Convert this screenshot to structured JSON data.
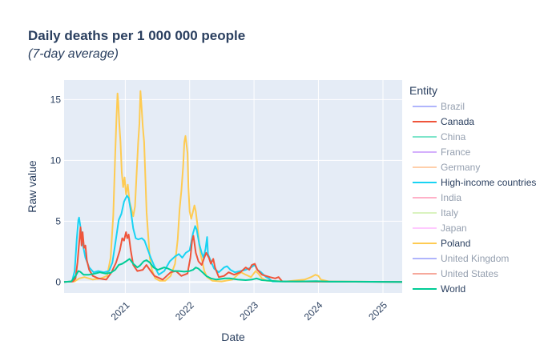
{
  "chart_data": {
    "type": "line",
    "title": "Daily deaths per 1 000 000 people",
    "subtitle": "(7-day average)",
    "xlabel": "Date",
    "ylabel": "Raw value",
    "xlim": [
      "2020-01-20",
      "2025-04-20"
    ],
    "ylim": [
      -0.9,
      16.6
    ],
    "x_ticks": [
      "2021",
      "2022",
      "2023",
      "2024",
      "2025"
    ],
    "y_ticks": [
      0,
      5,
      10,
      15
    ],
    "grid": true,
    "legend_title": "Entity",
    "legend_position": "right",
    "series": [
      {
        "name": "Brazil",
        "color": "#636efa",
        "visible": false,
        "points": []
      },
      {
        "name": "Canada",
        "color": "#EF553B",
        "visible": true,
        "points": [
          [
            "2020-01-20",
            0
          ],
          [
            "2020-03-10",
            0.05
          ],
          [
            "2020-03-25",
            0.3
          ],
          [
            "2020-04-05",
            1.6
          ],
          [
            "2020-04-15",
            3.3
          ],
          [
            "2020-04-22",
            4.5
          ],
          [
            "2020-04-28",
            3.0
          ],
          [
            "2020-05-04",
            4.1
          ],
          [
            "2020-05-12",
            2.8
          ],
          [
            "2020-05-20",
            3.0
          ],
          [
            "2020-05-28",
            1.8
          ],
          [
            "2020-06-10",
            1.0
          ],
          [
            "2020-07-01",
            0.5
          ],
          [
            "2020-08-01",
            0.3
          ],
          [
            "2020-09-15",
            0.2
          ],
          [
            "2020-10-15",
            0.8
          ],
          [
            "2020-11-10",
            1.6
          ],
          [
            "2020-12-01",
            2.6
          ],
          [
            "2020-12-15",
            3.6
          ],
          [
            "2020-12-25",
            3.4
          ],
          [
            "2021-01-05",
            4.1
          ],
          [
            "2021-01-12",
            3.6
          ],
          [
            "2021-01-20",
            3.9
          ],
          [
            "2021-02-01",
            2.6
          ],
          [
            "2021-02-15",
            1.4
          ],
          [
            "2021-03-10",
            0.9
          ],
          [
            "2021-04-10",
            1.0
          ],
          [
            "2021-05-01",
            1.4
          ],
          [
            "2021-05-20",
            1.0
          ],
          [
            "2021-06-15",
            0.5
          ],
          [
            "2021-08-01",
            0.2
          ],
          [
            "2021-09-15",
            0.8
          ],
          [
            "2021-10-15",
            0.9
          ],
          [
            "2021-11-15",
            0.5
          ],
          [
            "2021-12-20",
            0.7
          ],
          [
            "2022-01-05",
            2.0
          ],
          [
            "2022-01-15",
            3.4
          ],
          [
            "2022-01-22",
            3.8
          ],
          [
            "2022-01-28",
            3.2
          ],
          [
            "2022-02-05",
            2.4
          ],
          [
            "2022-02-20",
            1.7
          ],
          [
            "2022-03-10",
            1.4
          ],
          [
            "2022-03-25",
            2.0
          ],
          [
            "2022-04-05",
            2.4
          ],
          [
            "2022-04-20",
            2.0
          ],
          [
            "2022-05-01",
            1.5
          ],
          [
            "2022-05-15",
            1.9
          ],
          [
            "2022-05-25",
            1.2
          ],
          [
            "2022-06-15",
            0.4
          ],
          [
            "2022-07-15",
            0.5
          ],
          [
            "2022-08-10",
            0.8
          ],
          [
            "2022-09-10",
            0.6
          ],
          [
            "2022-10-15",
            0.8
          ],
          [
            "2022-11-15",
            1.2
          ],
          [
            "2022-12-05",
            1.0
          ],
          [
            "2022-12-20",
            1.4
          ],
          [
            "2023-01-05",
            1.5
          ],
          [
            "2023-01-20",
            1.0
          ],
          [
            "2023-02-15",
            0.6
          ],
          [
            "2023-04-01",
            0.4
          ],
          [
            "2023-05-01",
            0.3
          ],
          [
            "2023-05-20",
            0.4
          ],
          [
            "2023-06-10",
            0.05
          ],
          [
            "2025-04-20",
            0
          ]
        ]
      },
      {
        "name": "China",
        "color": "#00cc96",
        "visible": false,
        "points": []
      },
      {
        "name": "France",
        "color": "#ab63fa",
        "visible": false,
        "points": []
      },
      {
        "name": "Germany",
        "color": "#FFA15A",
        "visible": false,
        "points": []
      },
      {
        "name": "High-income countries",
        "color": "#19d3f3",
        "visible": true,
        "points": [
          [
            "2020-01-20",
            0
          ],
          [
            "2020-03-05",
            0.05
          ],
          [
            "2020-03-20",
            0.9
          ],
          [
            "2020-04-01",
            3.5
          ],
          [
            "2020-04-10",
            5.1
          ],
          [
            "2020-04-14",
            5.3
          ],
          [
            "2020-04-22",
            4.5
          ],
          [
            "2020-05-05",
            3.1
          ],
          [
            "2020-05-20",
            2.0
          ],
          [
            "2020-06-10",
            1.2
          ],
          [
            "2020-07-05",
            0.8
          ],
          [
            "2020-08-01",
            0.9
          ],
          [
            "2020-09-01",
            0.8
          ],
          [
            "2020-10-01",
            0.9
          ],
          [
            "2020-10-20",
            1.6
          ],
          [
            "2020-11-10",
            3.6
          ],
          [
            "2020-11-25",
            5.1
          ],
          [
            "2020-12-10",
            5.6
          ],
          [
            "2020-12-25",
            6.6
          ],
          [
            "2021-01-10",
            7.1
          ],
          [
            "2021-01-20",
            6.9
          ],
          [
            "2021-02-01",
            5.9
          ],
          [
            "2021-02-15",
            4.4
          ],
          [
            "2021-03-01",
            3.6
          ],
          [
            "2021-03-15",
            3.5
          ],
          [
            "2021-04-05",
            3.6
          ],
          [
            "2021-04-20",
            3.4
          ],
          [
            "2021-05-05",
            2.8
          ],
          [
            "2021-05-25",
            2.0
          ],
          [
            "2021-06-15",
            1.3
          ],
          [
            "2021-07-10",
            0.6
          ],
          [
            "2021-08-10",
            0.9
          ],
          [
            "2021-09-10",
            1.7
          ],
          [
            "2021-10-10",
            2.1
          ],
          [
            "2021-11-01",
            2.3
          ],
          [
            "2021-11-20",
            2.0
          ],
          [
            "2021-12-10",
            2.4
          ],
          [
            "2022-01-01",
            2.6
          ],
          [
            "2022-01-20",
            4.0
          ],
          [
            "2022-02-01",
            4.6
          ],
          [
            "2022-02-10",
            4.3
          ],
          [
            "2022-02-25",
            3.1
          ],
          [
            "2022-03-10",
            2.4
          ],
          [
            "2022-03-20",
            2.0
          ],
          [
            "2022-04-01",
            2.7
          ],
          [
            "2022-04-10",
            3.7
          ],
          [
            "2022-04-15",
            2.3
          ],
          [
            "2022-05-01",
            1.7
          ],
          [
            "2022-05-20",
            1.1
          ],
          [
            "2022-06-15",
            0.8
          ],
          [
            "2022-07-15",
            1.2
          ],
          [
            "2022-08-01",
            1.3
          ],
          [
            "2022-08-20",
            1.0
          ],
          [
            "2022-09-15",
            0.8
          ],
          [
            "2022-10-15",
            0.9
          ],
          [
            "2022-11-15",
            1.0
          ],
          [
            "2022-12-15",
            1.2
          ],
          [
            "2023-01-05",
            1.4
          ],
          [
            "2023-01-20",
            1.0
          ],
          [
            "2023-02-10",
            0.8
          ],
          [
            "2023-03-10",
            0.4
          ],
          [
            "2023-03-25",
            0.3
          ],
          [
            "2023-04-15",
            0.05
          ],
          [
            "2025-04-20",
            0
          ]
        ]
      },
      {
        "name": "India",
        "color": "#FF6692",
        "visible": false,
        "points": []
      },
      {
        "name": "Italy",
        "color": "#B6E880",
        "visible": false,
        "points": []
      },
      {
        "name": "Japan",
        "color": "#FF97FF",
        "visible": false,
        "points": []
      },
      {
        "name": "Poland",
        "color": "#FECB52",
        "visible": true,
        "points": [
          [
            "2020-01-20",
            0
          ],
          [
            "2020-03-20",
            0.05
          ],
          [
            "2020-04-15",
            0.3
          ],
          [
            "2020-05-15",
            0.4
          ],
          [
            "2020-07-01",
            0.2
          ],
          [
            "2020-08-15",
            0.3
          ],
          [
            "2020-09-20",
            0.5
          ],
          [
            "2020-10-10",
            2.0
          ],
          [
            "2020-10-25",
            5.5
          ],
          [
            "2020-11-05",
            10.5
          ],
          [
            "2020-11-12",
            13.5
          ],
          [
            "2020-11-18",
            15.5
          ],
          [
            "2020-11-22",
            14.8
          ],
          [
            "2020-11-28",
            13.0
          ],
          [
            "2020-12-05",
            11.5
          ],
          [
            "2020-12-12",
            9.0
          ],
          [
            "2020-12-20",
            7.8
          ],
          [
            "2020-12-28",
            8.6
          ],
          [
            "2021-01-05",
            7.2
          ],
          [
            "2021-01-15",
            8.0
          ],
          [
            "2021-01-25",
            6.6
          ],
          [
            "2021-02-05",
            6.0
          ],
          [
            "2021-02-15",
            5.4
          ],
          [
            "2021-02-25",
            6.2
          ],
          [
            "2021-03-05",
            8.6
          ],
          [
            "2021-03-15",
            11.5
          ],
          [
            "2021-03-22",
            13.0
          ],
          [
            "2021-03-28",
            15.7
          ],
          [
            "2021-04-03",
            14.5
          ],
          [
            "2021-04-10",
            12.8
          ],
          [
            "2021-04-18",
            11.5
          ],
          [
            "2021-04-25",
            8.5
          ],
          [
            "2021-05-02",
            5.7
          ],
          [
            "2021-05-10",
            4.0
          ],
          [
            "2021-05-20",
            2.0
          ],
          [
            "2021-06-01",
            1.0
          ],
          [
            "2021-06-20",
            0.3
          ],
          [
            "2021-07-15",
            0.1
          ],
          [
            "2021-08-15",
            0.1
          ],
          [
            "2021-09-15",
            0.5
          ],
          [
            "2021-10-10",
            1.5
          ],
          [
            "2021-10-25",
            3.5
          ],
          [
            "2021-11-05",
            6.0
          ],
          [
            "2021-11-15",
            7.5
          ],
          [
            "2021-11-25",
            9.5
          ],
          [
            "2021-12-02",
            11.5
          ],
          [
            "2021-12-08",
            12.0
          ],
          [
            "2021-12-15",
            11.2
          ],
          [
            "2021-12-20",
            10.6
          ],
          [
            "2021-12-25",
            7.8
          ],
          [
            "2022-01-01",
            5.8
          ],
          [
            "2022-01-10",
            5.2
          ],
          [
            "2022-01-20",
            5.8
          ],
          [
            "2022-01-28",
            6.3
          ],
          [
            "2022-02-05",
            5.8
          ],
          [
            "2022-02-15",
            4.6
          ],
          [
            "2022-02-25",
            3.0
          ],
          [
            "2022-03-05",
            2.2
          ],
          [
            "2022-03-15",
            1.6
          ],
          [
            "2022-03-25",
            0.9
          ],
          [
            "2022-04-10",
            0.4
          ],
          [
            "2022-05-10",
            0.1
          ],
          [
            "2022-07-01",
            0.05
          ],
          [
            "2022-09-01",
            0.2
          ],
          [
            "2022-10-01",
            0.6
          ],
          [
            "2022-10-20",
            0.8
          ],
          [
            "2022-11-15",
            0.6
          ],
          [
            "2022-12-15",
            0.4
          ],
          [
            "2023-01-10",
            0.9
          ],
          [
            "2023-01-25",
            0.7
          ],
          [
            "2023-02-15",
            0.3
          ],
          [
            "2023-03-15",
            0.1
          ],
          [
            "2023-07-01",
            0.05
          ],
          [
            "2023-10-15",
            0.2
          ],
          [
            "2023-11-20",
            0.4
          ],
          [
            "2023-12-15",
            0.6
          ],
          [
            "2024-01-01",
            0.5
          ],
          [
            "2024-01-15",
            0.2
          ],
          [
            "2024-03-01",
            0.05
          ],
          [
            "2025-04-20",
            0
          ]
        ]
      },
      {
        "name": "United Kingdom",
        "color": "#636efa",
        "visible": false,
        "points": []
      },
      {
        "name": "United States",
        "color": "#EF553B",
        "visible": false,
        "points": []
      },
      {
        "name": "World",
        "color": "#00cc96",
        "visible": true,
        "points": [
          [
            "2020-01-20",
            0
          ],
          [
            "2020-03-01",
            0.05
          ],
          [
            "2020-03-25",
            0.5
          ],
          [
            "2020-04-10",
            0.9
          ],
          [
            "2020-04-20",
            0.85
          ],
          [
            "2020-05-10",
            0.6
          ],
          [
            "2020-06-10",
            0.6
          ],
          [
            "2020-07-15",
            0.7
          ],
          [
            "2020-08-10",
            0.8
          ],
          [
            "2020-09-10",
            0.7
          ],
          [
            "2020-10-10",
            0.75
          ],
          [
            "2020-11-05",
            1.0
          ],
          [
            "2020-11-25",
            1.4
          ],
          [
            "2020-12-15",
            1.5
          ],
          [
            "2021-01-05",
            1.7
          ],
          [
            "2021-01-25",
            1.9
          ],
          [
            "2021-02-15",
            1.5
          ],
          [
            "2021-03-10",
            1.2
          ],
          [
            "2021-03-25",
            1.35
          ],
          [
            "2021-04-15",
            1.7
          ],
          [
            "2021-05-01",
            1.8
          ],
          [
            "2021-05-20",
            1.6
          ],
          [
            "2021-06-10",
            1.2
          ],
          [
            "2021-07-05",
            1.0
          ],
          [
            "2021-08-10",
            1.2
          ],
          [
            "2021-09-01",
            1.1
          ],
          [
            "2021-10-01",
            0.9
          ],
          [
            "2021-11-01",
            0.9
          ],
          [
            "2021-12-01",
            0.85
          ],
          [
            "2022-01-01",
            0.9
          ],
          [
            "2022-01-20",
            1.0
          ],
          [
            "2022-02-05",
            1.2
          ],
          [
            "2022-02-20",
            1.1
          ],
          [
            "2022-03-15",
            0.8
          ],
          [
            "2022-04-05",
            0.5
          ],
          [
            "2022-05-01",
            0.3
          ],
          [
            "2022-06-01",
            0.2
          ],
          [
            "2022-07-20",
            0.3
          ],
          [
            "2022-08-15",
            0.3
          ],
          [
            "2022-10-01",
            0.2
          ],
          [
            "2022-11-15",
            0.15
          ],
          [
            "2022-12-20",
            0.2
          ],
          [
            "2023-01-15",
            0.3
          ],
          [
            "2023-02-15",
            0.15
          ],
          [
            "2023-04-01",
            0.1
          ],
          [
            "2023-06-01",
            0.05
          ],
          [
            "2023-09-01",
            0.05
          ],
          [
            "2023-12-20",
            0.07
          ],
          [
            "2024-03-01",
            0.03
          ],
          [
            "2024-08-01",
            0.03
          ],
          [
            "2025-04-20",
            0.01
          ]
        ]
      }
    ]
  }
}
